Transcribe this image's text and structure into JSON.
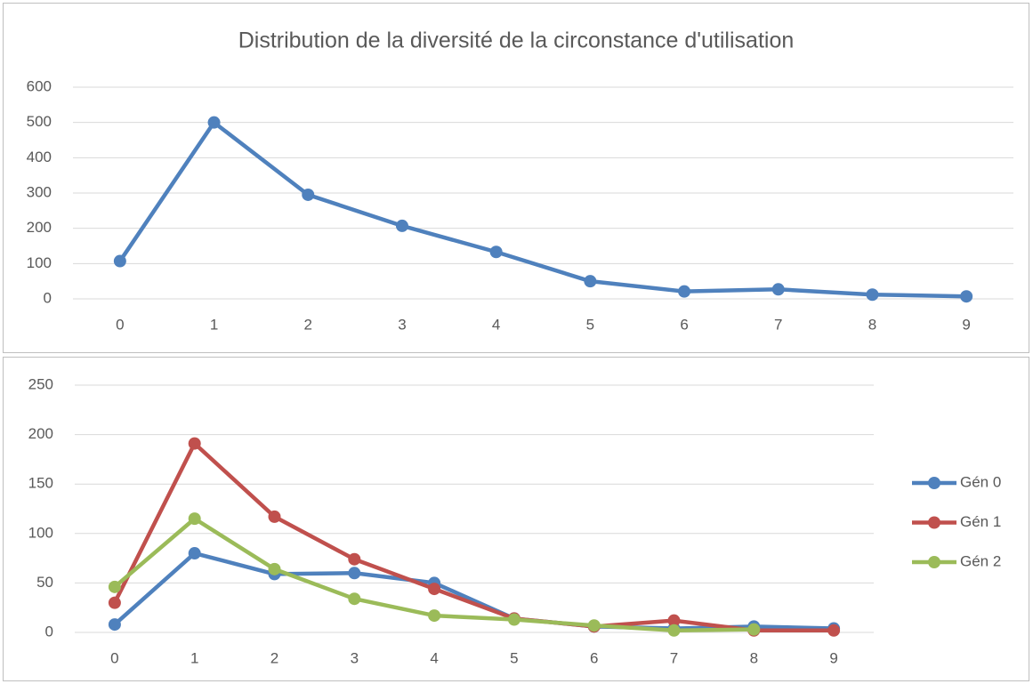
{
  "chart_data": [
    {
      "type": "line",
      "title": "Distribution de la diversité de la circonstance d'utilisation",
      "categories": [
        "0",
        "1",
        "2",
        "3",
        "4",
        "5",
        "6",
        "7",
        "8",
        "9"
      ],
      "series": [
        {
          "name": null,
          "color": "#4f81bd",
          "values": [
            107,
            500,
            295,
            207,
            133,
            50,
            21,
            27,
            12,
            7
          ]
        }
      ],
      "ylim": [
        0,
        600
      ],
      "yticks": [
        0,
        100,
        200,
        300,
        400,
        500,
        600
      ],
      "grid": true
    },
    {
      "type": "line",
      "categories": [
        "0",
        "1",
        "2",
        "3",
        "4",
        "5",
        "6",
        "7",
        "8",
        "9"
      ],
      "series": [
        {
          "name": "Gén 0",
          "color": "#4f81bd",
          "values": [
            8,
            80,
            59,
            60,
            50,
            14,
            6,
            4,
            6,
            4
          ]
        },
        {
          "name": "Gén 1",
          "color": "#c0504d",
          "values": [
            30,
            191,
            117,
            74,
            44,
            14,
            6,
            12,
            2,
            2
          ]
        },
        {
          "name": "Gén 2",
          "color": "#9bbb59",
          "values": [
            46,
            115,
            64,
            34,
            17,
            13,
            7,
            2,
            3,
            null
          ]
        }
      ],
      "ylim": [
        0,
        250
      ],
      "yticks": [
        0,
        50,
        100,
        150,
        200,
        250
      ],
      "grid": true,
      "legend": "right"
    }
  ]
}
